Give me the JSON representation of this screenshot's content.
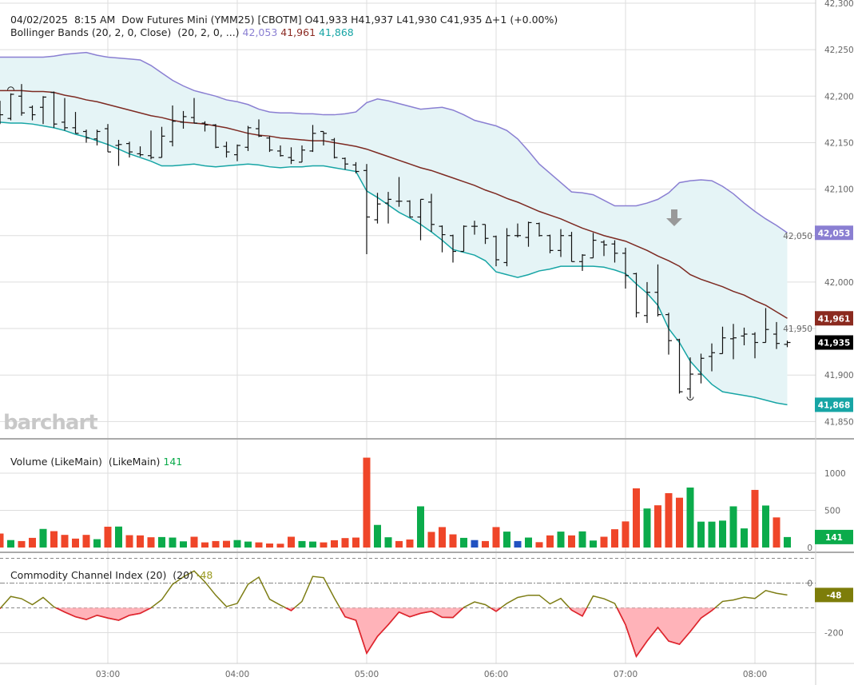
{
  "header": {
    "datetime": "04/02/2025  8:15 AM",
    "instrument": "Dow Futures Mini (YMM25) [CBOTM]",
    "ohlc_text": "O41,933 H41,937 L41,930 C41,935 Δ+1 (+0.00%)"
  },
  "bollinger_legend": {
    "label": "Bollinger Bands (20, 2, 0, Close)  (20, 2, 0, ...)",
    "upper": "42,053",
    "middle": "41,961",
    "lower": "41,868"
  },
  "volume_legend": {
    "label": "Volume (LikeMain)  (LikeMain)",
    "value": "141"
  },
  "cci_legend": {
    "label": "Commodity Channel Index (20)  (20)",
    "value": "-48"
  },
  "watermark": "barchart",
  "colors": {
    "upper_band": "#8a7fd2",
    "middle_band": "#7d2a22",
    "lower_band": "#17a5a5",
    "band_fill": "#e5f4f6",
    "price_bar": "#111111",
    "vol_up": "#0bab4b",
    "vol_down": "#ef4629",
    "vol_unchanged": "#2152c1",
    "cci_line": "#7d7d14",
    "cci_oversold": "#e32230",
    "cci_fill": "#ffb3b9",
    "last_price_badge": "#000000",
    "grid": "#dddddd"
  },
  "chart_data": {
    "type": "ohlc",
    "price_axis": {
      "range": [
        41840,
        42300
      ],
      "ticks": [
        "42,300",
        "42,250",
        "42,200",
        "42,150",
        "42,100",
        "42,050",
        "42,000",
        "41,950",
        "41,900",
        "41,850"
      ],
      "tick_values": [
        42300,
        42250,
        42200,
        42150,
        42100,
        42050,
        42000,
        41950,
        41900,
        41850
      ]
    },
    "volume_axis": {
      "ticks": [
        "1000",
        "500",
        "0"
      ],
      "tick_values": [
        1000,
        500,
        0
      ]
    },
    "cci_axis": {
      "ticks": [
        "0",
        "-200"
      ],
      "tick_values": [
        0,
        -200
      ],
      "levels": [
        100,
        0,
        -100
      ]
    },
    "x_axis": {
      "ticks": [
        "03:00",
        "04:00",
        "05:00",
        "06:00",
        "07:00",
        "08:00"
      ]
    },
    "badges": {
      "upper": "42,053",
      "middle": "41,961",
      "last": "41,935",
      "lower": "41,868",
      "volume": "141",
      "cci": "-48"
    },
    "badge_values": {
      "upper": 42053,
      "middle": 41961,
      "last": 41935,
      "lower": 41868,
      "volume": 141,
      "cci": -48
    },
    "markers": {
      "high": {
        "time": "02:15",
        "label_shape": "arc"
      },
      "low": {
        "time": "07:30",
        "label_shape": "arc"
      },
      "signal_arrow": {
        "time": "07:20",
        "direction": "down"
      }
    },
    "times": [
      "02:10",
      "02:15",
      "02:20",
      "02:25",
      "02:30",
      "02:35",
      "02:40",
      "02:45",
      "02:50",
      "02:55",
      "03:00",
      "03:05",
      "03:10",
      "03:15",
      "03:20",
      "03:25",
      "03:30",
      "03:35",
      "03:40",
      "03:45",
      "03:50",
      "03:55",
      "04:00",
      "04:05",
      "04:10",
      "04:15",
      "04:20",
      "04:25",
      "04:30",
      "04:35",
      "04:40",
      "04:45",
      "04:50",
      "04:55",
      "05:00",
      "05:05",
      "05:10",
      "05:15",
      "05:20",
      "05:25",
      "05:30",
      "05:35",
      "05:40",
      "05:45",
      "05:50",
      "05:55",
      "06:00",
      "06:05",
      "06:10",
      "06:15",
      "06:20",
      "06:25",
      "06:30",
      "06:35",
      "06:40",
      "06:45",
      "06:50",
      "06:55",
      "07:00",
      "07:05",
      "07:10",
      "07:15",
      "07:20",
      "07:25",
      "07:30",
      "07:35",
      "07:40",
      "07:45",
      "07:50",
      "07:55",
      "08:00",
      "08:05",
      "08:10",
      "08:15"
    ],
    "ohlc": [
      [
        42185,
        42195,
        42170,
        42180
      ],
      [
        42176,
        42203,
        42174,
        42202
      ],
      [
        42200,
        42213,
        42179,
        42182
      ],
      [
        42188,
        42190,
        42174,
        42180
      ],
      [
        42188,
        42200,
        42170,
        42199
      ],
      [
        42204,
        42205,
        42166,
        42170
      ],
      [
        42172,
        42198,
        42163,
        42166
      ],
      [
        42166,
        42183,
        42160,
        42160
      ],
      [
        42162,
        42164,
        42150,
        42155
      ],
      [
        42154,
        42164,
        42147,
        42162
      ],
      [
        42165,
        42170,
        42140,
        42140
      ],
      [
        42147,
        42153,
        42125,
        42148
      ],
      [
        42149,
        42151,
        42134,
        42140
      ],
      [
        42138,
        42146,
        42135,
        42137
      ],
      [
        42136,
        42163,
        42132,
        42134
      ],
      [
        42134,
        42167,
        42134,
        42157
      ],
      [
        42151,
        42190,
        42146,
        42173
      ],
      [
        42172,
        42184,
        42165,
        42178
      ],
      [
        42177,
        42198,
        42171,
        42171
      ],
      [
        42171,
        42173,
        42162,
        42169
      ],
      [
        42169,
        42170,
        42144,
        42145
      ],
      [
        42146,
        42151,
        42134,
        42140
      ],
      [
        42137,
        42148,
        42130,
        42147
      ],
      [
        42145,
        42168,
        42141,
        42166
      ],
      [
        42165,
        42175,
        42156,
        42157
      ],
      [
        42155,
        42157,
        42140,
        42142
      ],
      [
        42141,
        42147,
        42135,
        42136
      ],
      [
        42134,
        42145,
        42127,
        42131
      ],
      [
        42129,
        42147,
        42129,
        42142
      ],
      [
        42141,
        42169,
        42140,
        42160
      ],
      [
        42162,
        42162,
        42147,
        42160
      ],
      [
        42153,
        42155,
        42133,
        42134
      ],
      [
        42133,
        42134,
        42121,
        42127
      ],
      [
        42126,
        42129,
        42117,
        42119
      ],
      [
        42120,
        42127,
        42030,
        42070
      ],
      [
        42067,
        42096,
        42063,
        42084
      ],
      [
        42085,
        42097,
        42063,
        42089
      ],
      [
        42087,
        42113,
        42081,
        42087
      ],
      [
        42087,
        42088,
        42070,
        42070
      ],
      [
        42070,
        42089,
        42045,
        42089
      ],
      [
        42086,
        42095,
        42054,
        42062
      ],
      [
        42060,
        42061,
        42032,
        42051
      ],
      [
        42050,
        42051,
        42021,
        42033
      ],
      [
        42033,
        42061,
        42033,
        42060
      ],
      [
        42060,
        42066,
        42051,
        42060
      ],
      [
        42062,
        42062,
        42041,
        42047
      ],
      [
        42049,
        42050,
        42017,
        42024
      ],
      [
        42021,
        42058,
        42017,
        42050
      ],
      [
        42050,
        42063,
        42048,
        42050
      ],
      [
        42048,
        42065,
        42038,
        42064
      ],
      [
        42063,
        42064,
        42049,
        42050
      ],
      [
        42050,
        42051,
        42031,
        42034
      ],
      [
        42034,
        42057,
        42027,
        42050
      ],
      [
        42050,
        42054,
        42022,
        42022
      ],
      [
        42022,
        42030,
        42012,
        42029
      ],
      [
        42026,
        42053,
        42026,
        42045
      ],
      [
        42043,
        42045,
        42028,
        42040
      ],
      [
        42041,
        42045,
        42021,
        42031
      ],
      [
        42031,
        42037,
        41993,
        42007
      ],
      [
        42009,
        42010,
        41962,
        41967
      ],
      [
        41964,
        42000,
        41956,
        41989
      ],
      [
        41989,
        42019,
        41963,
        41965
      ],
      [
        41965,
        41967,
        41922,
        41937
      ],
      [
        41938,
        41939,
        41880,
        41882
      ],
      [
        41885,
        41919,
        41875,
        41901
      ],
      [
        41901,
        41923,
        41891,
        41918
      ],
      [
        41920,
        41934,
        41904,
        41924
      ],
      [
        41923,
        41952,
        41923,
        41940
      ],
      [
        41939,
        41955,
        41917,
        41940
      ],
      [
        41942,
        41951,
        41932,
        41944
      ],
      [
        41944,
        41946,
        41918,
        41935
      ],
      [
        41935,
        41972,
        41935,
        41949
      ],
      [
        41944,
        41957,
        41928,
        41934
      ],
      [
        41933,
        41937,
        41930,
        41935
      ]
    ],
    "bb_upper": [
      42242,
      42242,
      42242,
      42242,
      42242,
      42243,
      42245,
      42246,
      42247,
      42244,
      42242,
      42241,
      42240,
      42239,
      42233,
      42225,
      42217,
      42211,
      42206,
      42203,
      42200,
      42196,
      42194,
      42191,
      42186,
      42183,
      42182,
      42182,
      42181,
      42181,
      42180,
      42180,
      42181,
      42183,
      42193,
      42197,
      42195,
      42192,
      42189,
      42186,
      42187,
      42188,
      42185,
      42180,
      42174,
      42171,
      42168,
      42163,
      42154,
      42141,
      42127,
      42117,
      42107,
      42097,
      42096,
      42094,
      42088,
      42082,
      42082,
      42082,
      42085,
      42089,
      42096,
      42107,
      42109,
      42110,
      42109,
      42103,
      42095,
      42085,
      42076,
      42068,
      42061,
      42053
    ],
    "bb_middle": [
      42206,
      42206,
      42206,
      42205,
      42205,
      42204,
      42201,
      42199,
      42196,
      42194,
      42191,
      42188,
      42185,
      42182,
      42179,
      42177,
      42174,
      42172,
      42171,
      42170,
      42168,
      42166,
      42163,
      42160,
      42158,
      42157,
      42155,
      42154,
      42153,
      42152,
      42152,
      42150,
      42148,
      42146,
      42143,
      42139,
      42135,
      42131,
      42127,
      42123,
      42120,
      42116,
      42112,
      42108,
      42104,
      42099,
      42095,
      42090,
      42086,
      42081,
      42076,
      42072,
      42068,
      42063,
      42058,
      42054,
      42050,
      42047,
      42044,
      42039,
      42034,
      42028,
      42023,
      42017,
      42008,
      42003,
      41999,
      41995,
      41990,
      41986,
      41980,
      41975,
      41968,
      41961
    ],
    "bb_lower": [
      42172,
      42171,
      42171,
      42170,
      42168,
      42166,
      42163,
      42159,
      42156,
      42152,
      42148,
      42143,
      42138,
      42134,
      42130,
      42125,
      42125,
      42126,
      42127,
      42125,
      42124,
      42125,
      42126,
      42127,
      42126,
      42124,
      42123,
      42124,
      42124,
      42125,
      42125,
      42123,
      42121,
      42119,
      42098,
      42091,
      42083,
      42075,
      42069,
      42062,
      42054,
      42045,
      42035,
      42032,
      42029,
      42023,
      42011,
      42008,
      42005,
      42008,
      42012,
      42014,
      42017,
      42017,
      42017,
      42017,
      42016,
      42013,
      42009,
      41998,
      41988,
      41975,
      41950,
      41935,
      41915,
      41902,
      41890,
      41882,
      41880,
      41878,
      41876,
      41873,
      41870,
      41868
    ],
    "volume": [
      188,
      100,
      87,
      130,
      250,
      220,
      170,
      120,
      170,
      112,
      280,
      282,
      166,
      163,
      138,
      141,
      134,
      83,
      145,
      69,
      87,
      90,
      100,
      80,
      69,
      54,
      51,
      145,
      87,
      80,
      69,
      98,
      127,
      134,
      1209,
      304,
      138,
      87,
      108,
      554,
      210,
      275,
      177,
      130,
      100,
      87,
      275,
      214,
      87,
      134,
      72,
      163,
      214,
      163,
      217,
      94,
      145,
      246,
      351,
      796,
      525,
      568,
      731,
      670,
      807,
      348,
      348,
      362,
      554,
      257,
      775,
      565,
      405,
      141
    ],
    "volume_dir": [
      "d",
      "u",
      "d",
      "d",
      "u",
      "d",
      "d",
      "d",
      "d",
      "u",
      "d",
      "u",
      "d",
      "d",
      "d",
      "u",
      "u",
      "u",
      "d",
      "d",
      "d",
      "d",
      "u",
      "u",
      "d",
      "d",
      "d",
      "d",
      "u",
      "u",
      "d",
      "d",
      "d",
      "d",
      "d",
      "u",
      "u",
      "d",
      "d",
      "u",
      "d",
      "d",
      "d",
      "u",
      "n",
      "d",
      "d",
      "u",
      "n",
      "u",
      "d",
      "d",
      "u",
      "d",
      "u",
      "u",
      "d",
      "d",
      "d",
      "d",
      "u",
      "d",
      "d",
      "d",
      "u",
      "u",
      "u",
      "u",
      "u",
      "u",
      "d",
      "u",
      "d",
      "u"
    ],
    "cci": [
      -103,
      -54,
      -63,
      -87,
      -58,
      -96,
      -117,
      -136,
      -147,
      -130,
      -141,
      -150,
      -130,
      -122,
      -100,
      -67,
      -5,
      25,
      49,
      5,
      -49,
      -95,
      -82,
      -5,
      24,
      -65,
      -89,
      -111,
      -74,
      27,
      22,
      -60,
      -136,
      -150,
      -283,
      -215,
      -168,
      -117,
      -136,
      -122,
      -114,
      -138,
      -139,
      -98,
      -76,
      -87,
      -114,
      -82,
      -58,
      -49,
      -49,
      -84,
      -62,
      -109,
      -133,
      -52,
      -63,
      -82,
      -168,
      -296,
      -234,
      -179,
      -234,
      -247,
      -196,
      -141,
      -111,
      -74,
      -68,
      -57,
      -62,
      -30,
      -41,
      -48
    ]
  }
}
